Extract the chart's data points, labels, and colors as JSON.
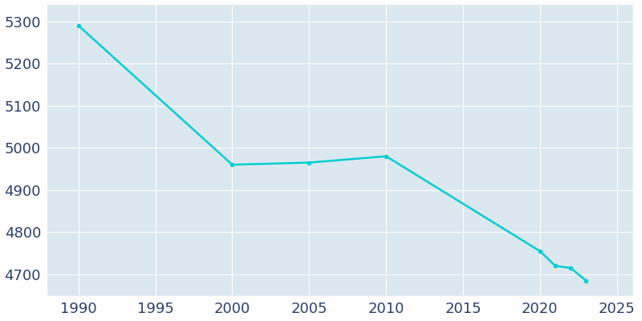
{
  "years": [
    1990,
    2000,
    2005,
    2010,
    2020,
    2021,
    2022,
    2023
  ],
  "population": [
    5290,
    4960,
    4965,
    4980,
    4755,
    4720,
    4715,
    4685
  ],
  "line_color": "#00CED1",
  "plot_bg_color": "#dce8f0",
  "figure_bg_color": "#ffffff",
  "grid_color": "#ffffff",
  "line_width": 1.8,
  "xlim": [
    1988,
    2026
  ],
  "ylim": [
    4650,
    5340
  ],
  "xticks": [
    1990,
    1995,
    2000,
    2005,
    2010,
    2015,
    2020,
    2025
  ],
  "yticks": [
    4700,
    4800,
    4900,
    5000,
    5100,
    5200,
    5300
  ],
  "tick_label_color": "#2c3e6e",
  "tick_fontsize": 13,
  "spine_color": "#c0cfe0"
}
